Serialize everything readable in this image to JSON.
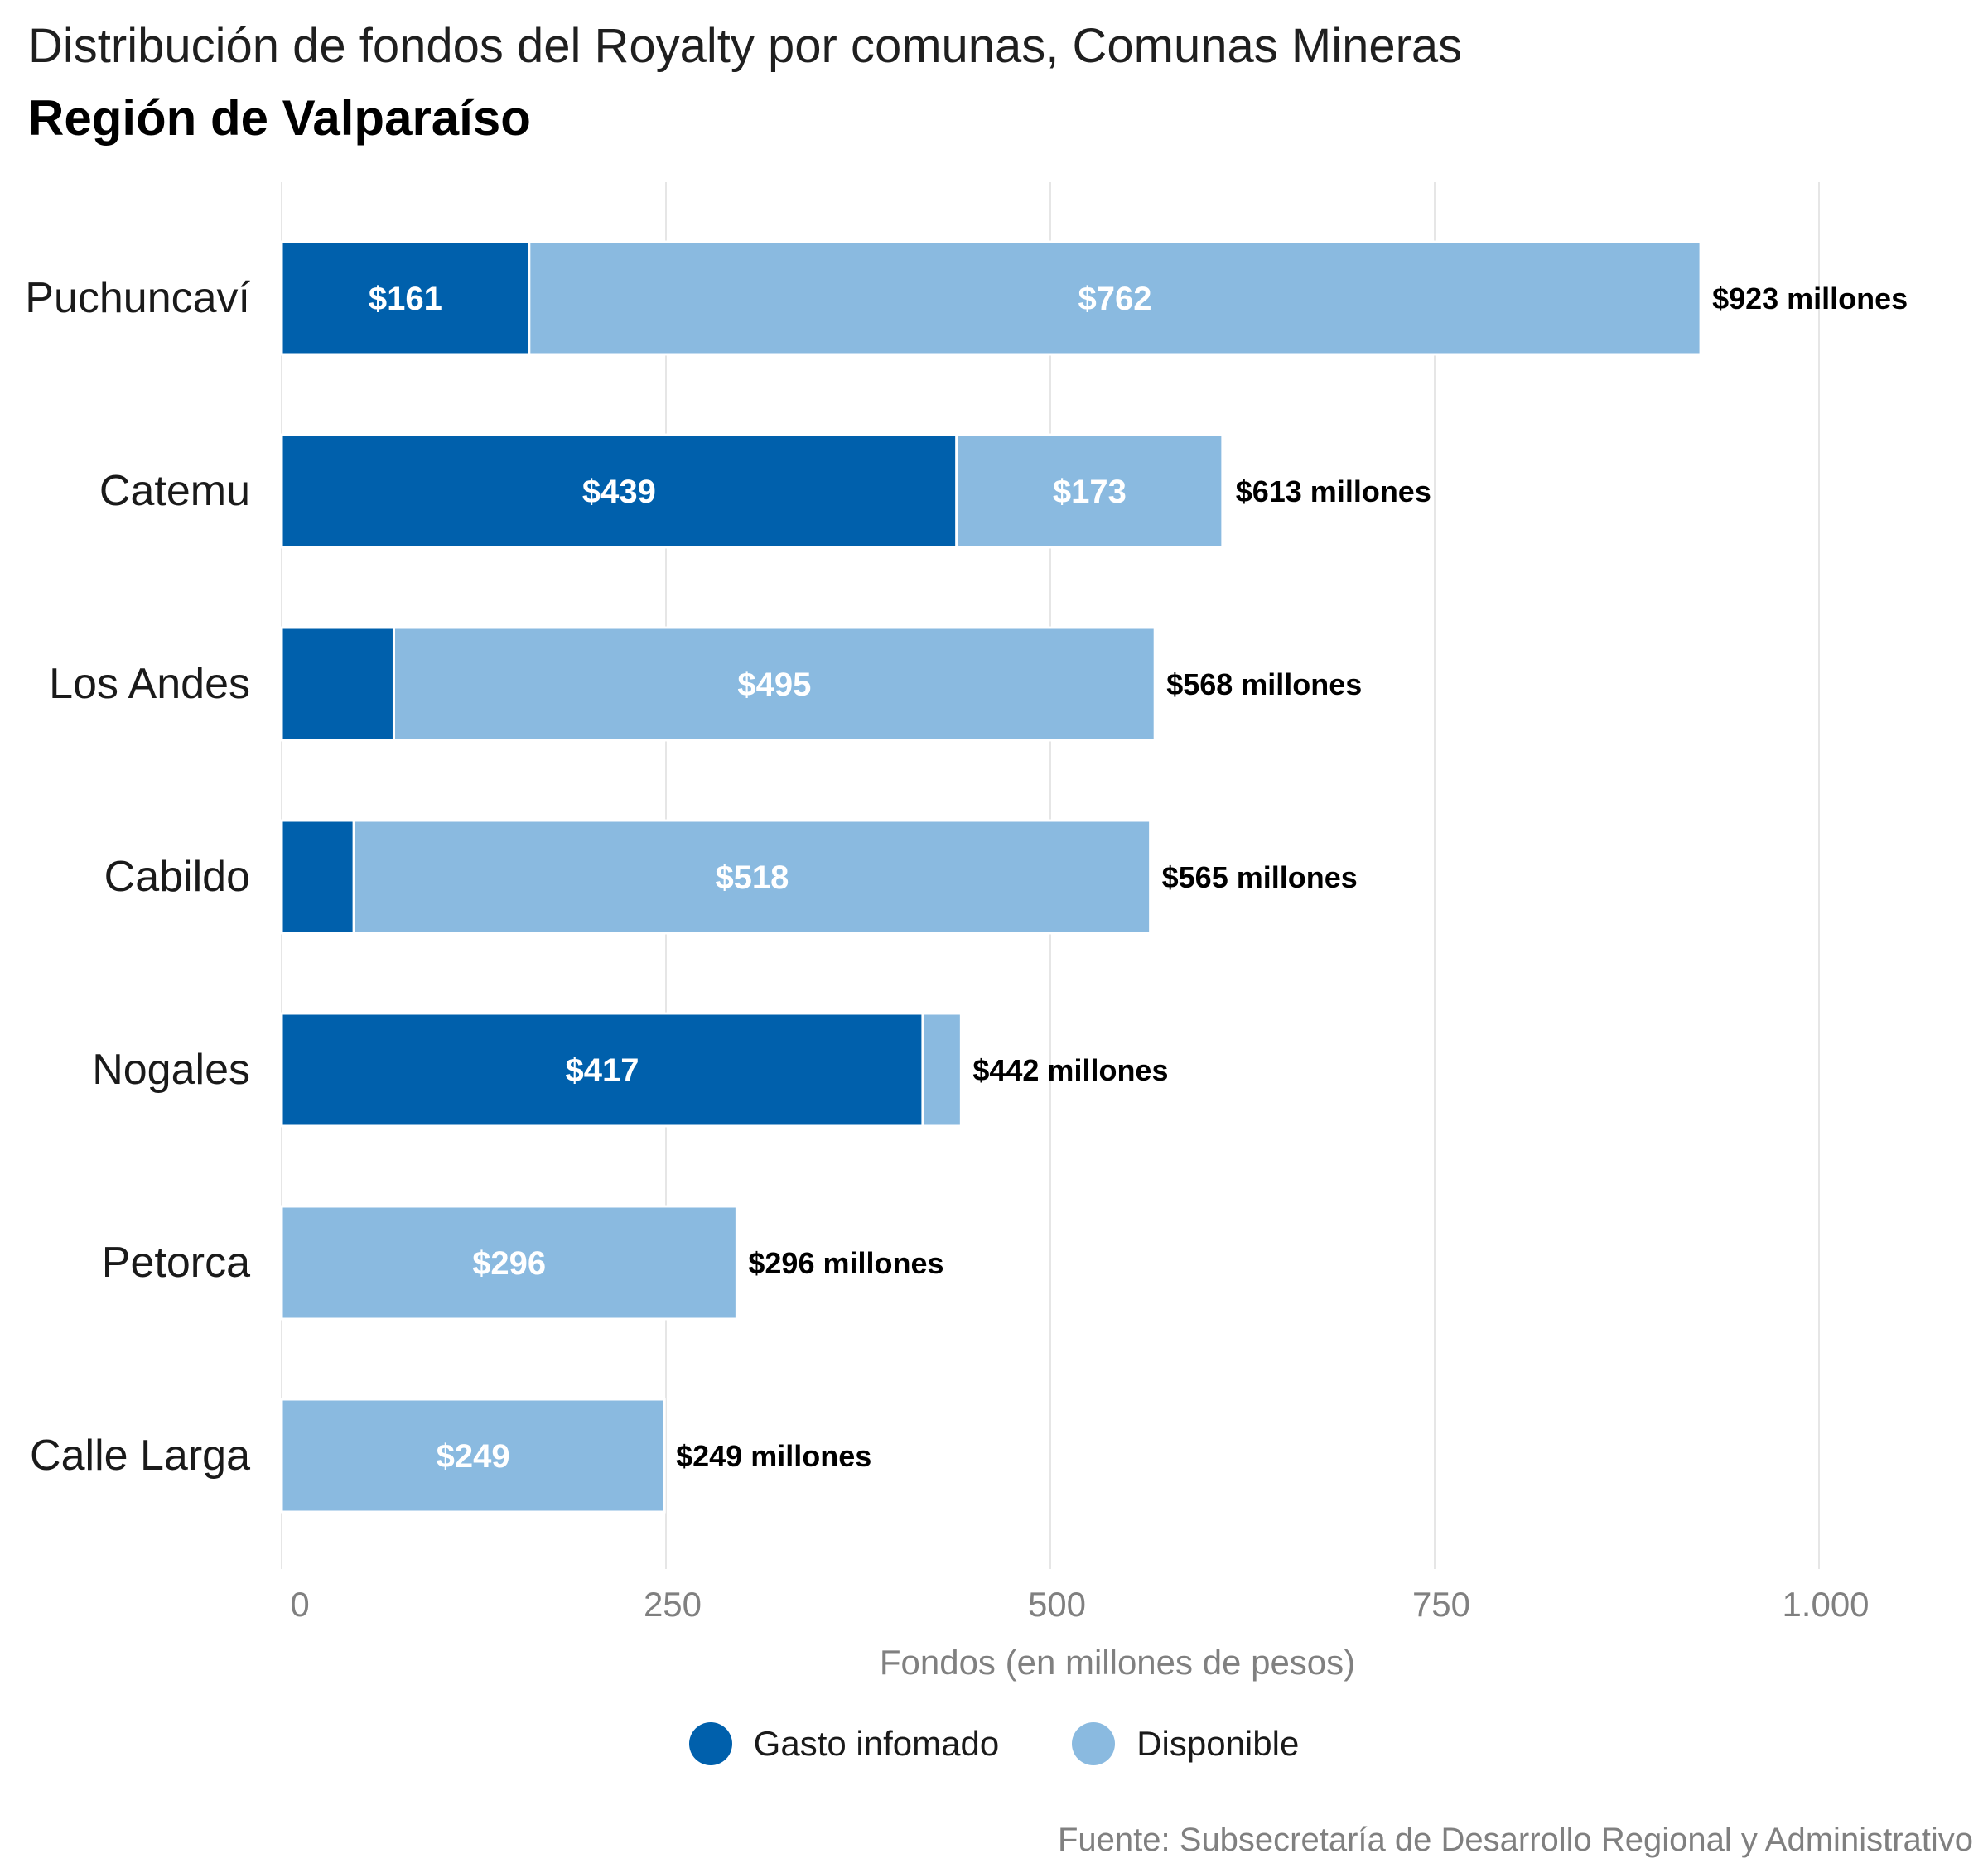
{
  "chart_data": {
    "type": "bar",
    "orientation": "horizontal",
    "stacked": true,
    "title": "Distribución de fondos del Royalty por comunas, Comunas Mineras",
    "subtitle": "Región de Valparaíso",
    "xlabel": "Fondos (en millones de pesos)",
    "ylabel": "",
    "xlim": [
      0,
      1060
    ],
    "x_ticks": [
      0,
      250,
      500,
      750,
      1000
    ],
    "x_tick_labels": [
      "0",
      "250",
      "500",
      "750",
      "1.000"
    ],
    "grid": "vertical",
    "legend_position": "bottom",
    "categories": [
      "Puchuncaví",
      "Catemu",
      "Los Andes",
      "Cabildo",
      "Nogales",
      "Petorca",
      "Calle Larga"
    ],
    "series": [
      {
        "name": "Gasto infomado",
        "color": "#0060ac",
        "values": [
          161,
          439,
          73,
          47,
          417,
          0,
          0
        ],
        "data_labels": [
          "$161",
          "$439",
          "",
          "",
          "$417",
          "",
          ""
        ]
      },
      {
        "name": "Disponible",
        "color": "#8abae0",
        "values": [
          762,
          173,
          495,
          518,
          25,
          296,
          249
        ],
        "data_labels": [
          "$762",
          "$173",
          "$495",
          "$518",
          "",
          "$296",
          "$249"
        ]
      }
    ],
    "totals": [
      923,
      613,
      568,
      565,
      442,
      296,
      249
    ],
    "total_labels": [
      "$923 millones",
      "$613 millones",
      "$568 millones",
      "$565 millones",
      "$442 millones",
      "$296 millones",
      "$249 millones"
    ],
    "source": "Fuente: Subsecretaría de Desarrollo Regional y Administrativo"
  },
  "colors": {
    "grid": "#e6e6e6",
    "axis_text": "#808080",
    "category_text": "#1a1a1a",
    "bar_label": "#ffffff",
    "total_label": "#000000"
  }
}
